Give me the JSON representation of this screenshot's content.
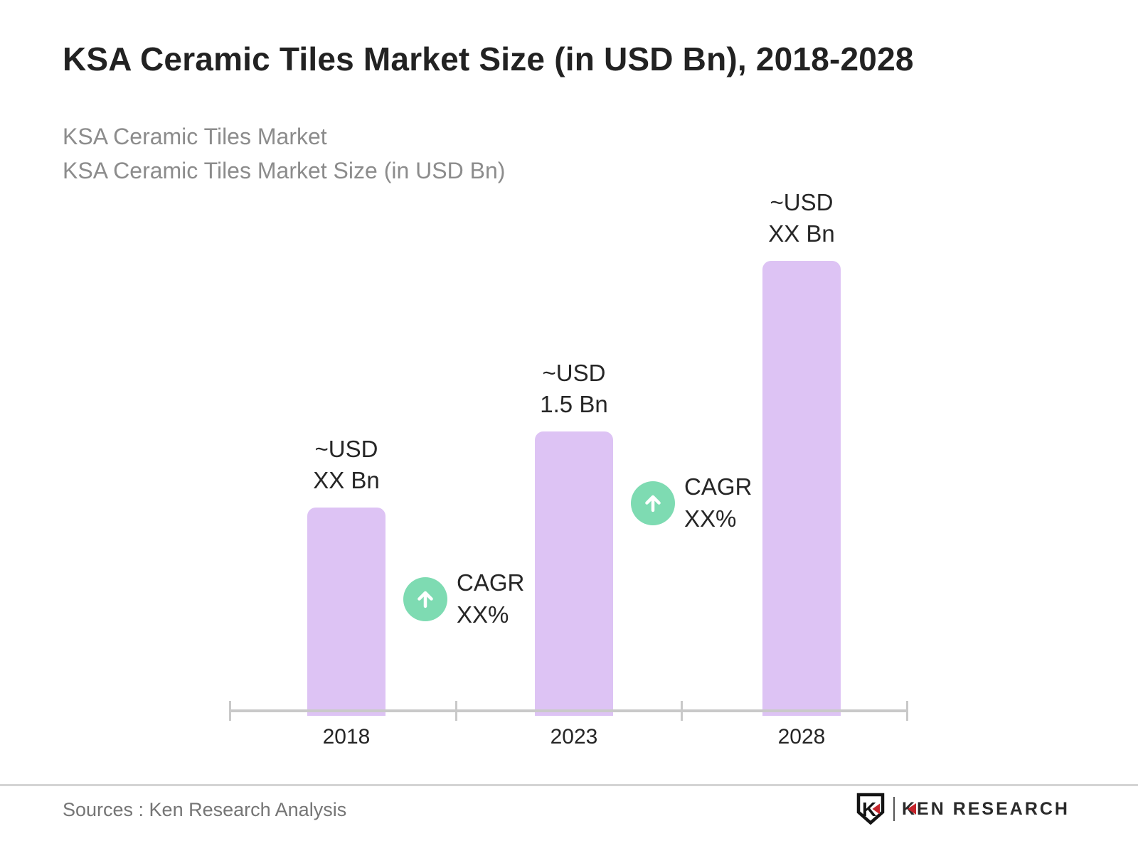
{
  "title": "KSA Ceramic Tiles Market Size (in USD Bn), 2018-2028",
  "subtitle": {
    "line1": "KSA Ceramic Tiles Market",
    "line2": "KSA Ceramic Tiles Market Size (in USD Bn)"
  },
  "footer": {
    "source": "Sources : Ken Research Analysis",
    "logo": {
      "badge_letter": "K",
      "brand_k": "K",
      "brand_rest": "EN RESEARCH"
    }
  },
  "colors": {
    "bar": "#DDC3F4",
    "cagr_circle": "#7EDBB2",
    "title_text": "#222222",
    "subtitle_text": "#8C8C8C",
    "label_text": "#262626",
    "axis": "#C9C9C9",
    "source_text": "#757575",
    "logo_red": "#C4242B",
    "logo_dark": "#2A2A2A"
  },
  "chart_data": {
    "type": "bar",
    "title": "KSA Ceramic Tiles Market Size (in USD Bn), 2018-2028",
    "categories": [
      "2018",
      "2023",
      "2028"
    ],
    "values": [
      1.1,
      1.5,
      2.4
    ],
    "values_note": "2018 and 2028 values are masked as XX in the chart; numbers estimated from bar heights relative to 2023 = 1.5 USD Bn",
    "bar_labels": [
      {
        "line1": "~USD",
        "line2": "XX Bn"
      },
      {
        "line1": "~USD",
        "line2": "1.5 Bn"
      },
      {
        "line1": "~USD",
        "line2": "XX Bn"
      }
    ],
    "annotations": [
      {
        "between": [
          "2018",
          "2023"
        ],
        "line1": "CAGR",
        "line2": "XX%"
      },
      {
        "between": [
          "2023",
          "2028"
        ],
        "line1": "CAGR",
        "line2": "XX%"
      }
    ],
    "xlabel": "",
    "ylabel": "",
    "ylim": [
      0,
      2.4
    ],
    "grid": false,
    "legend": false
  }
}
